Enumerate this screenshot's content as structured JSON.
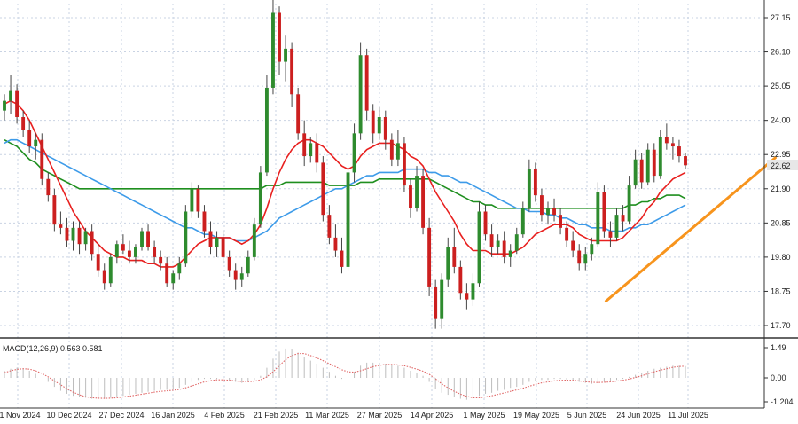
{
  "chart_data": {
    "type": "candlestick",
    "symbol_price_label": "22.62",
    "last_price": 22.62,
    "y_ticks": [
      "27.15",
      "26.10",
      "25.05",
      "24.00",
      "22.95",
      "21.90",
      "20.85",
      "19.80",
      "18.75",
      "17.70"
    ],
    "y_tick_values": [
      27.15,
      26.1,
      25.05,
      24.0,
      22.95,
      21.9,
      20.85,
      19.8,
      18.75,
      17.7
    ],
    "ylim": [
      17.2,
      27.9
    ],
    "x_ticks": [
      "21 Nov 2024",
      "10 Dec 2024",
      "27 Dec 2024",
      "16 Jan 2025",
      "4 Feb 2025",
      "21 Feb 2025",
      "11 Mar 2025",
      "27 Mar 2025",
      "14 Apr 2025",
      "1 May 2025",
      "19 May 2025",
      "5 Jun 2025",
      "24 Jun 2025",
      "11 Jul 2025"
    ],
    "grid": true,
    "colors": {
      "bull": "#2e8b2e",
      "bear": "#cc1f1f",
      "ma_fast": "#e8201f",
      "ma_mid": "#3d9be9",
      "ma_slow": "#1f8f1f",
      "trendline": "#f7941d",
      "macd_hist": "#bdbdbd",
      "macd_signal": "#e06666"
    },
    "candles": [
      [
        24.3,
        24.8,
        24.0,
        24.6
      ],
      [
        24.6,
        25.4,
        24.2,
        24.9
      ],
      [
        24.9,
        25.1,
        23.9,
        24.1
      ],
      [
        24.1,
        24.3,
        23.5,
        23.7
      ],
      [
        23.7,
        24.0,
        23.0,
        23.2
      ],
      [
        23.2,
        23.6,
        22.8,
        23.4
      ],
      [
        23.4,
        23.6,
        22.0,
        22.2
      ],
      [
        22.2,
        22.4,
        21.5,
        21.7
      ],
      [
        21.7,
        21.9,
        20.6,
        20.8
      ],
      [
        20.8,
        21.2,
        20.5,
        20.7
      ],
      [
        20.7,
        21.0,
        20.1,
        20.3
      ],
      [
        20.3,
        20.9,
        20.0,
        20.7
      ],
      [
        20.7,
        20.9,
        19.9,
        20.2
      ],
      [
        20.2,
        20.7,
        20.0,
        20.6
      ],
      [
        20.6,
        20.8,
        19.7,
        19.9
      ],
      [
        19.9,
        20.2,
        19.2,
        19.4
      ],
      [
        19.4,
        19.6,
        18.8,
        19.0
      ],
      [
        19.0,
        19.9,
        18.9,
        19.8
      ],
      [
        19.8,
        20.3,
        19.6,
        20.2
      ],
      [
        20.2,
        20.5,
        19.9,
        20.0
      ],
      [
        20.0,
        20.3,
        19.6,
        19.8
      ],
      [
        19.8,
        20.2,
        19.6,
        20.1
      ],
      [
        20.1,
        20.7,
        20.0,
        20.6
      ],
      [
        20.6,
        20.8,
        20.0,
        20.1
      ],
      [
        20.1,
        20.3,
        19.6,
        19.8
      ],
      [
        19.8,
        20.0,
        19.4,
        19.6
      ],
      [
        19.6,
        19.8,
        18.9,
        19.0
      ],
      [
        19.0,
        19.4,
        18.8,
        19.3
      ],
      [
        19.3,
        19.8,
        19.1,
        19.6
      ],
      [
        19.6,
        21.4,
        19.5,
        21.2
      ],
      [
        21.2,
        22.1,
        21.0,
        21.9
      ],
      [
        21.9,
        22.0,
        21.0,
        21.2
      ],
      [
        21.2,
        21.4,
        20.4,
        20.6
      ],
      [
        20.6,
        20.9,
        19.9,
        20.1
      ],
      [
        20.1,
        20.6,
        19.8,
        20.4
      ],
      [
        20.4,
        20.6,
        19.6,
        19.8
      ],
      [
        19.8,
        20.0,
        19.2,
        19.4
      ],
      [
        19.4,
        19.6,
        18.8,
        19.1
      ],
      [
        19.1,
        19.5,
        18.9,
        19.3
      ],
      [
        19.3,
        20.0,
        19.2,
        19.8
      ],
      [
        19.8,
        21.0,
        19.7,
        20.8
      ],
      [
        20.8,
        22.6,
        20.7,
        22.4
      ],
      [
        22.4,
        25.4,
        22.3,
        25.0
      ],
      [
        25.0,
        27.7,
        24.8,
        27.3
      ],
      [
        27.3,
        27.5,
        25.4,
        25.8
      ],
      [
        25.8,
        26.6,
        25.2,
        26.2
      ],
      [
        26.2,
        26.4,
        24.4,
        24.8
      ],
      [
        24.8,
        25.0,
        23.4,
        23.6
      ],
      [
        23.6,
        24.0,
        22.6,
        22.9
      ],
      [
        22.9,
        23.5,
        22.7,
        23.3
      ],
      [
        23.3,
        23.6,
        22.4,
        22.7
      ],
      [
        22.7,
        22.9,
        20.9,
        21.1
      ],
      [
        21.1,
        21.4,
        20.2,
        20.4
      ],
      [
        20.4,
        20.8,
        19.8,
        20.0
      ],
      [
        20.0,
        20.4,
        19.3,
        19.5
      ],
      [
        19.5,
        22.6,
        19.4,
        22.4
      ],
      [
        22.4,
        23.9,
        22.1,
        23.6
      ],
      [
        23.6,
        26.4,
        23.4,
        26.0
      ],
      [
        26.0,
        26.2,
        24.0,
        24.3
      ],
      [
        24.3,
        24.5,
        23.3,
        23.6
      ],
      [
        23.6,
        24.4,
        23.4,
        24.1
      ],
      [
        24.1,
        24.3,
        23.1,
        23.4
      ],
      [
        23.4,
        23.6,
        22.6,
        22.8
      ],
      [
        22.8,
        23.7,
        22.6,
        23.3
      ],
      [
        23.3,
        23.5,
        21.8,
        22.0
      ],
      [
        22.0,
        22.2,
        21.0,
        21.3
      ],
      [
        21.3,
        22.6,
        21.2,
        22.3
      ],
      [
        22.3,
        22.5,
        20.5,
        20.7
      ],
      [
        20.7,
        21.0,
        18.6,
        18.9
      ],
      [
        18.9,
        19.1,
        17.6,
        17.9
      ],
      [
        17.9,
        19.3,
        17.6,
        19.1
      ],
      [
        19.1,
        20.4,
        18.9,
        20.1
      ],
      [
        20.1,
        20.7,
        19.3,
        19.5
      ],
      [
        19.5,
        19.7,
        18.5,
        18.7
      ],
      [
        18.7,
        19.0,
        18.2,
        18.5
      ],
      [
        18.5,
        19.3,
        18.3,
        19.0
      ],
      [
        19.0,
        21.5,
        18.9,
        21.2
      ],
      [
        21.2,
        21.4,
        20.3,
        20.5
      ],
      [
        20.5,
        20.8,
        19.8,
        20.1
      ],
      [
        20.1,
        20.5,
        19.9,
        20.3
      ],
      [
        20.3,
        20.6,
        19.6,
        19.8
      ],
      [
        19.8,
        20.2,
        19.5,
        20.0
      ],
      [
        20.0,
        20.7,
        19.9,
        20.5
      ],
      [
        20.5,
        21.5,
        20.4,
        21.3
      ],
      [
        21.3,
        22.8,
        21.2,
        22.5
      ],
      [
        22.5,
        22.7,
        21.5,
        21.7
      ],
      [
        21.7,
        21.9,
        20.9,
        21.1
      ],
      [
        21.1,
        21.5,
        20.8,
        21.3
      ],
      [
        21.3,
        21.6,
        20.9,
        21.1
      ],
      [
        21.1,
        21.3,
        20.5,
        20.7
      ],
      [
        20.7,
        20.9,
        20.1,
        20.3
      ],
      [
        20.3,
        20.6,
        19.8,
        20.0
      ],
      [
        20.0,
        20.2,
        19.4,
        19.6
      ],
      [
        19.6,
        20.1,
        19.4,
        19.9
      ],
      [
        19.9,
        20.4,
        19.7,
        20.2
      ],
      [
        20.2,
        22.1,
        20.1,
        21.8
      ],
      [
        21.8,
        22.0,
        20.4,
        20.6
      ],
      [
        20.6,
        20.9,
        20.1,
        20.4
      ],
      [
        20.4,
        21.3,
        20.3,
        21.1
      ],
      [
        21.1,
        21.4,
        20.6,
        20.9
      ],
      [
        20.9,
        22.3,
        20.8,
        22.0
      ],
      [
        22.0,
        23.1,
        21.9,
        22.8
      ],
      [
        22.8,
        23.0,
        21.9,
        22.1
      ],
      [
        22.1,
        23.3,
        22.0,
        23.1
      ],
      [
        23.1,
        23.3,
        22.1,
        22.3
      ],
      [
        22.3,
        23.7,
        22.2,
        23.5
      ],
      [
        23.5,
        23.9,
        23.1,
        23.3
      ],
      [
        23.3,
        23.5,
        22.8,
        23.2
      ],
      [
        23.2,
        23.4,
        22.7,
        22.9
      ],
      [
        22.9,
        23.0,
        22.5,
        22.62
      ]
    ],
    "ma_fast": [
      24.5,
      24.6,
      24.5,
      24.3,
      24.0,
      23.6,
      23.2,
      22.8,
      22.4,
      22.0,
      21.6,
      21.2,
      20.9,
      20.6,
      20.4,
      20.2,
      20.0,
      19.9,
      19.8,
      19.8,
      19.7,
      19.7,
      19.7,
      19.6,
      19.6,
      19.5,
      19.5,
      19.5,
      19.6,
      19.8,
      20.0,
      20.2,
      20.3,
      20.4,
      20.4,
      20.4,
      20.4,
      20.3,
      20.2,
      20.3,
      20.5,
      20.8,
      21.3,
      21.9,
      22.4,
      22.8,
      23.1,
      23.3,
      23.4,
      23.4,
      23.3,
      23.2,
      23.0,
      22.8,
      22.6,
      22.5,
      22.6,
      22.9,
      23.1,
      23.2,
      23.3,
      23.3,
      23.3,
      23.2,
      23.1,
      22.9,
      22.8,
      22.6,
      22.2,
      21.8,
      21.5,
      21.2,
      20.9,
      20.5,
      20.2,
      20.0,
      20.0,
      20.0,
      19.9,
      19.9,
      19.9,
      19.9,
      20.0,
      20.1,
      20.3,
      20.5,
      20.6,
      20.7,
      20.8,
      20.8,
      20.8,
      20.7,
      20.5,
      20.4,
      20.3,
      20.3,
      20.3,
      20.3,
      20.3,
      20.4,
      20.6,
      20.8,
      21.0,
      21.3,
      21.5,
      21.8,
      22.0,
      22.2,
      22.3,
      22.4
    ],
    "ma_mid": [
      23.3,
      23.4,
      23.4,
      23.3,
      23.2,
      23.1,
      23.0,
      22.9,
      22.8,
      22.7,
      22.6,
      22.5,
      22.4,
      22.3,
      22.2,
      22.1,
      22.0,
      21.9,
      21.8,
      21.7,
      21.6,
      21.5,
      21.4,
      21.3,
      21.2,
      21.1,
      21.0,
      20.9,
      20.8,
      20.7,
      20.7,
      20.6,
      20.5,
      20.5,
      20.4,
      20.4,
      20.4,
      20.3,
      20.3,
      20.3,
      20.4,
      20.5,
      20.6,
      20.8,
      21.0,
      21.1,
      21.2,
      21.3,
      21.4,
      21.5,
      21.6,
      21.7,
      21.8,
      21.9,
      21.9,
      22.0,
      22.1,
      22.2,
      22.3,
      22.3,
      22.4,
      22.4,
      22.4,
      22.4,
      22.5,
      22.5,
      22.5,
      22.5,
      22.4,
      22.4,
      22.3,
      22.3,
      22.2,
      22.1,
      22.1,
      22.0,
      21.9,
      21.8,
      21.7,
      21.6,
      21.5,
      21.4,
      21.3,
      21.3,
      21.2,
      21.2,
      21.2,
      21.1,
      21.1,
      21.0,
      21.0,
      20.9,
      20.8,
      20.8,
      20.7,
      20.7,
      20.7,
      20.6,
      20.6,
      20.6,
      20.7,
      20.7,
      20.8,
      20.8,
      20.9,
      21.0,
      21.1,
      21.2,
      21.3,
      21.4
    ],
    "ma_slow": [
      23.4,
      23.3,
      23.2,
      23.0,
      22.8,
      22.7,
      22.5,
      22.4,
      22.3,
      22.2,
      22.1,
      22.0,
      21.9,
      21.9,
      21.9,
      21.9,
      21.9,
      21.9,
      21.9,
      21.9,
      21.9,
      21.9,
      21.9,
      21.9,
      21.9,
      21.9,
      21.9,
      21.9,
      21.9,
      21.9,
      21.9,
      21.9,
      21.9,
      21.9,
      21.9,
      21.9,
      21.9,
      21.9,
      21.9,
      21.9,
      21.9,
      21.9,
      22.0,
      22.0,
      22.0,
      22.1,
      22.1,
      22.1,
      22.1,
      22.1,
      22.1,
      22.1,
      22.0,
      22.0,
      22.0,
      22.0,
      22.0,
      22.1,
      22.1,
      22.1,
      22.2,
      22.2,
      22.2,
      22.2,
      22.2,
      22.2,
      22.2,
      22.2,
      22.2,
      22.1,
      22.0,
      21.9,
      21.8,
      21.7,
      21.6,
      21.5,
      21.5,
      21.4,
      21.4,
      21.3,
      21.3,
      21.3,
      21.3,
      21.3,
      21.3,
      21.3,
      21.3,
      21.3,
      21.3,
      21.3,
      21.3,
      21.3,
      21.3,
      21.3,
      21.3,
      21.3,
      21.3,
      21.3,
      21.3,
      21.3,
      21.4,
      21.4,
      21.5,
      21.5,
      21.6,
      21.6,
      21.7,
      21.7,
      21.7,
      21.6
    ],
    "trendline": {
      "from": [
        97,
        18.45
      ],
      "to": [
        117,
        22.85
      ]
    },
    "macd": {
      "label": "MACD(12,26,9) 0.563 0.581",
      "y_ticks": [
        "1.49",
        "0.00",
        "-1.204"
      ],
      "y_tick_values": [
        1.49,
        0.0,
        -1.204
      ],
      "ylim": [
        -1.35,
        1.6
      ],
      "histogram": [
        0.35,
        0.45,
        0.5,
        0.45,
        0.35,
        0.2,
        0.0,
        -0.2,
        -0.45,
        -0.65,
        -0.8,
        -0.9,
        -0.95,
        -1.0,
        -1.05,
        -1.05,
        -1.05,
        -1.0,
        -0.95,
        -0.9,
        -0.85,
        -0.8,
        -0.75,
        -0.7,
        -0.65,
        -0.6,
        -0.6,
        -0.55,
        -0.5,
        -0.35,
        -0.2,
        -0.1,
        -0.05,
        -0.05,
        -0.05,
        -0.1,
        -0.15,
        -0.2,
        -0.25,
        -0.2,
        -0.1,
        0.1,
        0.5,
        0.95,
        1.3,
        1.45,
        1.4,
        1.25,
        1.05,
        0.85,
        0.7,
        0.5,
        0.3,
        0.1,
        -0.05,
        0.1,
        0.3,
        0.6,
        0.75,
        0.75,
        0.75,
        0.7,
        0.65,
        0.6,
        0.5,
        0.35,
        0.25,
        0.1,
        -0.2,
        -0.55,
        -0.75,
        -0.85,
        -0.95,
        -1.05,
        -1.1,
        -1.05,
        -0.9,
        -0.8,
        -0.75,
        -0.65,
        -0.6,
        -0.5,
        -0.45,
        -0.35,
        -0.2,
        -0.15,
        -0.1,
        -0.1,
        -0.05,
        -0.05,
        -0.1,
        -0.15,
        -0.2,
        -0.25,
        -0.3,
        -0.25,
        -0.2,
        -0.15,
        -0.1,
        -0.05,
        0.05,
        0.15,
        0.25,
        0.35,
        0.45,
        0.5,
        0.55,
        0.6,
        0.6,
        0.58
      ],
      "signal": [
        0.25,
        0.35,
        0.42,
        0.45,
        0.43,
        0.35,
        0.22,
        0.05,
        -0.15,
        -0.35,
        -0.55,
        -0.72,
        -0.85,
        -0.95,
        -1.0,
        -1.02,
        -1.03,
        -1.02,
        -1.0,
        -0.96,
        -0.92,
        -0.87,
        -0.82,
        -0.77,
        -0.72,
        -0.68,
        -0.65,
        -0.62,
        -0.58,
        -0.5,
        -0.4,
        -0.3,
        -0.2,
        -0.14,
        -0.1,
        -0.1,
        -0.12,
        -0.15,
        -0.18,
        -0.19,
        -0.17,
        -0.1,
        0.05,
        0.3,
        0.6,
        0.9,
        1.1,
        1.2,
        1.2,
        1.1,
        0.98,
        0.85,
        0.7,
        0.55,
        0.4,
        0.3,
        0.28,
        0.35,
        0.45,
        0.55,
        0.62,
        0.66,
        0.66,
        0.64,
        0.6,
        0.52,
        0.43,
        0.33,
        0.18,
        -0.05,
        -0.3,
        -0.5,
        -0.68,
        -0.82,
        -0.93,
        -1.0,
        -1.0,
        -0.96,
        -0.9,
        -0.83,
        -0.76,
        -0.68,
        -0.6,
        -0.52,
        -0.42,
        -0.33,
        -0.25,
        -0.2,
        -0.15,
        -0.12,
        -0.11,
        -0.12,
        -0.15,
        -0.19,
        -0.22,
        -0.23,
        -0.22,
        -0.2,
        -0.16,
        -0.12,
        -0.06,
        0.02,
        0.1,
        0.2,
        0.3,
        0.38,
        0.45,
        0.52,
        0.56,
        0.58
      ]
    }
  }
}
